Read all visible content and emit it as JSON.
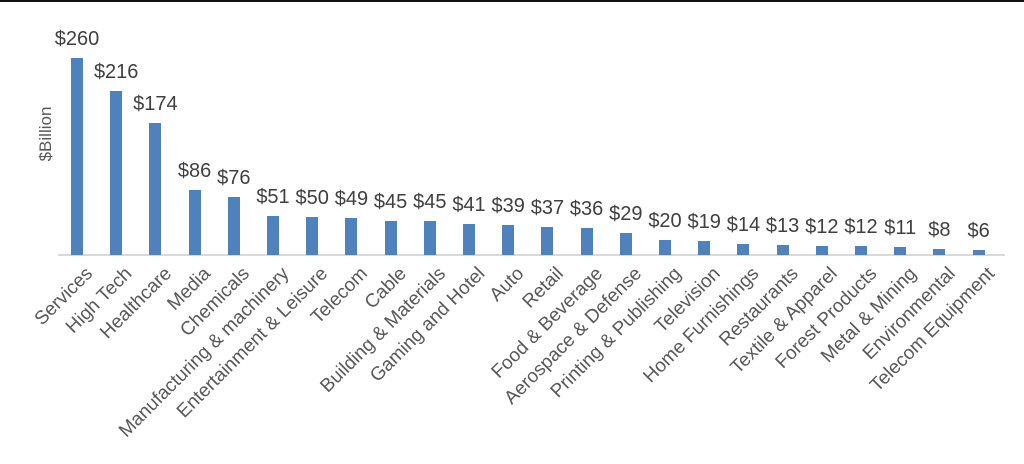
{
  "chart_data": {
    "type": "bar",
    "title": "",
    "xlabel": "",
    "ylabel": "$Billion",
    "ylim": [
      0,
      260
    ],
    "grid": false,
    "legend": false,
    "categories": [
      "Services",
      "High Tech",
      "Healthcare",
      "Media",
      "Chemicals",
      "Manufacturing & machinery",
      "Entertainment & Leisure",
      "Telecom",
      "Cable",
      "Building & Materials",
      "Gaming and Hotel",
      "Auto",
      "Retail",
      "Food & Beverage",
      "Aerospace & Defense",
      "Printing & Publishing",
      "Television",
      "Home Furnishings",
      "Restaurants",
      "Textile & Apparel",
      "Forest Products",
      "Metal & Mining",
      "Environmental",
      "Telecom Equipment"
    ],
    "values": [
      260,
      216,
      174,
      86,
      76,
      51,
      50,
      49,
      45,
      45,
      41,
      39,
      37,
      36,
      29,
      20,
      19,
      14,
      13,
      12,
      12,
      11,
      8,
      6
    ],
    "value_labels": [
      "$260",
      "$216",
      "$174",
      "$86",
      "$76",
      "$51",
      "$50",
      "$49",
      "$45",
      "$45",
      "$41",
      "$39",
      "$37",
      "$36",
      "$29",
      "$20",
      "$19",
      "$14",
      "$13",
      "$12",
      "$12",
      "$11",
      "$8",
      "$6"
    ],
    "colors": {
      "bar": "#4f81bd",
      "value_label": "#404040",
      "category_label": "#595959",
      "axis_line": "#d9d9d9",
      "top_border": "#111111"
    }
  }
}
